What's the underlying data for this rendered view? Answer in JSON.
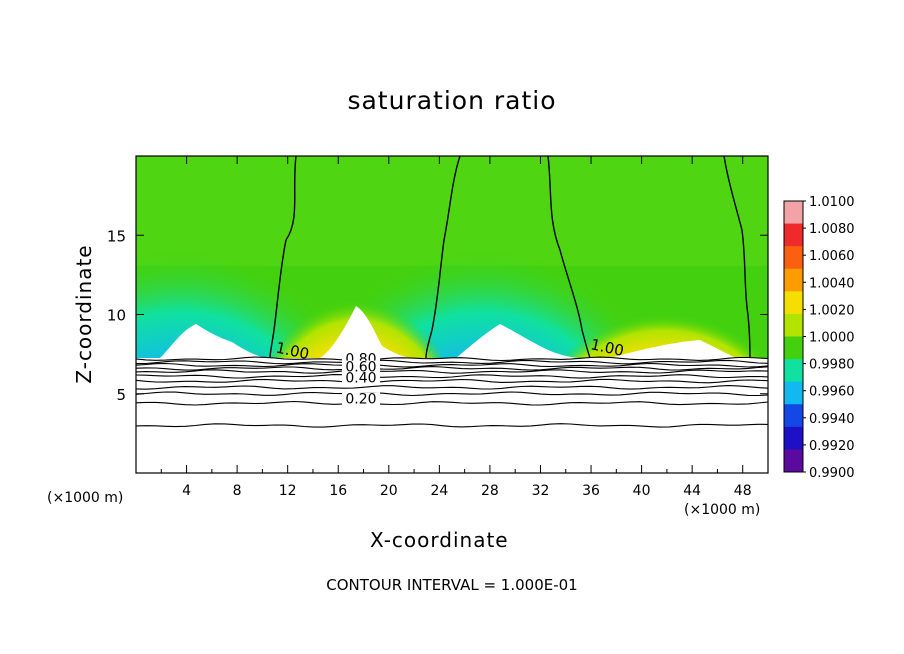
{
  "chart_data": {
    "type": "heatmap",
    "title": "saturation ratio",
    "xlabel": "X-coordinate",
    "ylabel": "Z-coordinate",
    "x_unit_label": "(×1000 m)",
    "x_unit_label_right": "(×1000 m)",
    "footer": "CONTOUR INTERVAL = 1.000E-01",
    "xlim": [
      0,
      50
    ],
    "ylim": [
      0,
      20
    ],
    "x_ticks": [
      "4",
      "8",
      "12",
      "16",
      "20",
      "24",
      "28",
      "32",
      "36",
      "40",
      "44",
      "48"
    ],
    "y_ticks": [
      "5",
      "10",
      "15"
    ],
    "colorbar": {
      "levels": [
        "1.0100",
        "1.0080",
        "1.0060",
        "1.0040",
        "1.0020",
        "1.0000",
        "0.9980",
        "0.9960",
        "0.9940",
        "0.9920",
        "0.9900"
      ],
      "colors": [
        "#f2a3a8",
        "#ee2a2a",
        "#fa6010",
        "#fb9d00",
        "#f4df00",
        "#b2e400",
        "#43d10f",
        "#10e1a0",
        "#12b8f0",
        "#1448e6",
        "#1d10c6",
        "#5a0a9e"
      ]
    },
    "contour_labels": [
      {
        "text": "1.00",
        "x": 12.3,
        "y": 7.4
      },
      {
        "text": "1.00",
        "x": 37.2,
        "y": 7.6
      },
      {
        "text": "0.80",
        "x": 17.8,
        "y": 6.9
      },
      {
        "text": "0.60",
        "x": 17.8,
        "y": 6.4
      },
      {
        "text": "0.40",
        "x": 17.8,
        "y": 5.7
      },
      {
        "text": "0.20",
        "x": 17.8,
        "y": 4.4
      }
    ],
    "cloud_base_z": 7.3,
    "contour_lines_z": [
      7.2,
      7.0,
      6.8,
      6.6,
      6.4,
      6.1,
      5.8,
      5.4,
      5.0,
      4.4,
      3.0
    ]
  }
}
